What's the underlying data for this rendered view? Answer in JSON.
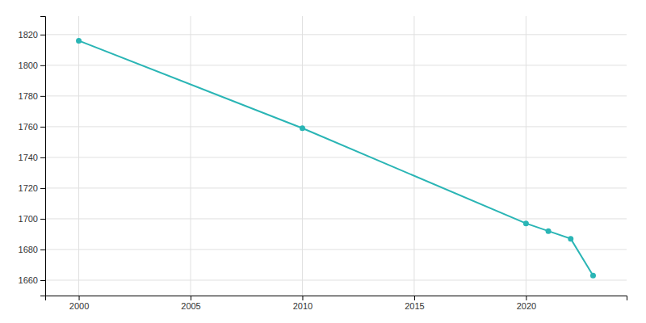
{
  "chart_data": {
    "type": "line",
    "x": [
      2000,
      2010,
      2020,
      2021,
      2022,
      2023
    ],
    "values": [
      1816,
      1759,
      1697,
      1692,
      1687,
      1663
    ],
    "color": "#2ab5b5",
    "marker": "circle",
    "xlim": [
      1998.5,
      2024.5
    ],
    "ylim": [
      1650,
      1832
    ],
    "xticks": [
      2000,
      2005,
      2010,
      2015,
      2020
    ],
    "yticks": [
      1660,
      1680,
      1700,
      1720,
      1740,
      1760,
      1780,
      1800,
      1820
    ],
    "grid": true
  }
}
